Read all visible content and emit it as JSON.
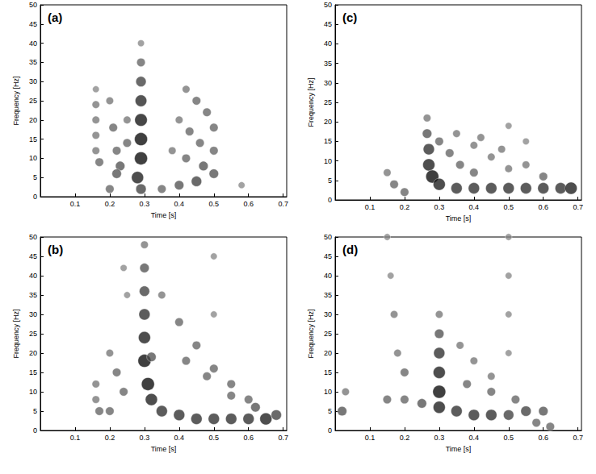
{
  "chart_data": [
    {
      "type": "scatter",
      "title": "(a)",
      "xlabel": "Time [s]",
      "ylabel": "Frequency [Hz]",
      "xlim": [
        0,
        0.71
      ],
      "xticks": [
        0.1,
        0.2,
        0.3,
        0.4,
        0.5,
        0.6,
        0.7
      ],
      "ylim": [
        0,
        50
      ],
      "yticks": [
        0,
        5,
        10,
        15,
        20,
        25,
        30,
        35,
        40,
        45,
        50
      ],
      "color": "#000000",
      "zlim": [
        0,
        1
      ],
      "cells": [
        [
          0.29,
          40,
          0.3
        ],
        [
          0.29,
          35,
          0.5
        ],
        [
          0.29,
          30,
          0.7
        ],
        [
          0.29,
          25,
          0.85
        ],
        [
          0.29,
          20,
          0.95
        ],
        [
          0.29,
          15,
          1
        ],
        [
          0.29,
          10,
          1
        ],
        [
          0.28,
          5,
          0.9
        ],
        [
          0.29,
          2,
          0.7
        ],
        [
          0.16,
          28,
          0.3
        ],
        [
          0.16,
          24,
          0.4
        ],
        [
          0.16,
          20,
          0.4
        ],
        [
          0.16,
          16,
          0.4
        ],
        [
          0.16,
          12,
          0.4
        ],
        [
          0.17,
          9,
          0.5
        ],
        [
          0.2,
          25,
          0.4
        ],
        [
          0.21,
          18,
          0.5
        ],
        [
          0.22,
          12,
          0.5
        ],
        [
          0.23,
          8,
          0.6
        ],
        [
          0.22,
          6,
          0.6
        ],
        [
          0.25,
          20,
          0.4
        ],
        [
          0.25,
          14,
          0.5
        ],
        [
          0.42,
          28,
          0.4
        ],
        [
          0.45,
          25,
          0.5
        ],
        [
          0.48,
          22,
          0.5
        ],
        [
          0.5,
          18,
          0.5
        ],
        [
          0.4,
          20,
          0.4
        ],
        [
          0.43,
          17,
          0.5
        ],
        [
          0.46,
          14,
          0.5
        ],
        [
          0.5,
          12,
          0.5
        ],
        [
          0.38,
          12,
          0.4
        ],
        [
          0.42,
          10,
          0.5
        ],
        [
          0.47,
          8,
          0.6
        ],
        [
          0.5,
          6,
          0.6
        ],
        [
          0.45,
          4,
          0.7
        ],
        [
          0.4,
          3,
          0.6
        ],
        [
          0.35,
          2,
          0.5
        ],
        [
          0.2,
          2,
          0.5
        ],
        [
          0.58,
          3,
          0.3
        ]
      ]
    },
    {
      "type": "scatter",
      "title": "(b)",
      "xlabel": "Time [s]",
      "ylabel": "Frequency [Hz]",
      "xlim": [
        0,
        0.71
      ],
      "xticks": [
        0.1,
        0.2,
        0.3,
        0.4,
        0.5,
        0.6,
        0.7
      ],
      "ylim": [
        0,
        50
      ],
      "yticks": [
        0,
        5,
        10,
        15,
        20,
        25,
        30,
        35,
        40,
        45,
        50
      ],
      "color": "#000000",
      "zlim": [
        0,
        1
      ],
      "cells": [
        [
          0.3,
          48,
          0.4
        ],
        [
          0.3,
          42,
          0.6
        ],
        [
          0.3,
          36,
          0.7
        ],
        [
          0.3,
          30,
          0.8
        ],
        [
          0.3,
          24,
          0.9
        ],
        [
          0.3,
          18,
          1
        ],
        [
          0.31,
          12,
          1
        ],
        [
          0.32,
          8,
          0.9
        ],
        [
          0.35,
          5,
          0.8
        ],
        [
          0.4,
          4,
          0.8
        ],
        [
          0.45,
          3,
          0.8
        ],
        [
          0.5,
          3,
          0.8
        ],
        [
          0.55,
          3,
          0.8
        ],
        [
          0.6,
          3,
          0.8
        ],
        [
          0.65,
          3,
          0.9
        ],
        [
          0.68,
          4,
          0.7
        ],
        [
          0.32,
          19,
          0.6
        ],
        [
          0.16,
          12,
          0.4
        ],
        [
          0.16,
          8,
          0.4
        ],
        [
          0.17,
          5,
          0.5
        ],
        [
          0.2,
          20,
          0.4
        ],
        [
          0.22,
          15,
          0.5
        ],
        [
          0.24,
          10,
          0.5
        ],
        [
          0.2,
          5,
          0.5
        ],
        [
          0.25,
          35,
          0.3
        ],
        [
          0.24,
          42,
          0.3
        ],
        [
          0.35,
          35,
          0.4
        ],
        [
          0.4,
          28,
          0.5
        ],
        [
          0.45,
          22,
          0.5
        ],
        [
          0.5,
          16,
          0.5
        ],
        [
          0.55,
          12,
          0.5
        ],
        [
          0.6,
          8,
          0.5
        ],
        [
          0.42,
          18,
          0.5
        ],
        [
          0.48,
          14,
          0.5
        ],
        [
          0.55,
          9,
          0.5
        ],
        [
          0.62,
          6,
          0.6
        ],
        [
          0.5,
          45,
          0.3
        ],
        [
          0.5,
          30,
          0.3
        ]
      ]
    },
    {
      "type": "scatter",
      "title": "(c)",
      "xlabel": "Time [s]",
      "ylabel": "Frequency [Hz]",
      "xlim": [
        0,
        0.71
      ],
      "xticks": [
        0.1,
        0.2,
        0.3,
        0.4,
        0.5,
        0.6,
        0.7
      ],
      "ylim": [
        0,
        50
      ],
      "yticks": [
        0,
        5,
        10,
        15,
        20,
        25,
        30,
        35,
        40,
        45,
        50
      ],
      "color": "#000000",
      "zlim": [
        0,
        1
      ],
      "cells": [
        [
          0.265,
          21,
          0.4
        ],
        [
          0.265,
          17,
          0.6
        ],
        [
          0.27,
          13,
          0.8
        ],
        [
          0.27,
          9,
          0.9
        ],
        [
          0.28,
          6,
          1
        ],
        [
          0.3,
          4,
          0.9
        ],
        [
          0.35,
          3,
          0.8
        ],
        [
          0.4,
          3,
          0.8
        ],
        [
          0.45,
          3,
          0.8
        ],
        [
          0.5,
          3,
          0.8
        ],
        [
          0.55,
          3,
          0.8
        ],
        [
          0.6,
          3,
          0.8
        ],
        [
          0.65,
          3,
          0.8
        ],
        [
          0.68,
          3,
          0.9
        ],
        [
          0.15,
          7,
          0.4
        ],
        [
          0.17,
          4,
          0.5
        ],
        [
          0.2,
          2,
          0.5
        ],
        [
          0.3,
          15,
          0.5
        ],
        [
          0.33,
          12,
          0.5
        ],
        [
          0.36,
          9,
          0.5
        ],
        [
          0.4,
          7,
          0.5
        ],
        [
          0.35,
          17,
          0.4
        ],
        [
          0.4,
          14,
          0.4
        ],
        [
          0.45,
          11,
          0.4
        ],
        [
          0.5,
          8,
          0.4
        ],
        [
          0.42,
          16,
          0.4
        ],
        [
          0.48,
          13,
          0.4
        ],
        [
          0.55,
          9,
          0.4
        ],
        [
          0.6,
          6,
          0.5
        ],
        [
          0.5,
          19,
          0.3
        ],
        [
          0.55,
          15,
          0.3
        ]
      ]
    },
    {
      "type": "scatter",
      "title": "(d)",
      "xlabel": "Time [s]",
      "ylabel": "Frequency [Hz]",
      "xlim": [
        0,
        0.71
      ],
      "xticks": [
        0.1,
        0.2,
        0.3,
        0.4,
        0.5,
        0.6,
        0.7
      ],
      "ylim": [
        0,
        50
      ],
      "yticks": [
        0,
        5,
        10,
        15,
        20,
        25,
        30,
        35,
        40,
        45,
        50
      ],
      "color": "#000000",
      "zlim": [
        0,
        1
      ],
      "cells": [
        [
          0.3,
          30,
          0.4
        ],
        [
          0.3,
          25,
          0.6
        ],
        [
          0.3,
          20,
          0.8
        ],
        [
          0.3,
          15,
          0.9
        ],
        [
          0.3,
          10,
          1
        ],
        [
          0.3,
          6,
          0.9
        ],
        [
          0.35,
          5,
          0.8
        ],
        [
          0.4,
          4,
          0.8
        ],
        [
          0.45,
          4,
          0.8
        ],
        [
          0.5,
          4,
          0.7
        ],
        [
          0.55,
          5,
          0.7
        ],
        [
          0.6,
          5,
          0.6
        ],
        [
          0.25,
          7,
          0.6
        ],
        [
          0.2,
          8,
          0.5
        ],
        [
          0.15,
          8,
          0.5
        ],
        [
          0.02,
          5,
          0.6
        ],
        [
          0.03,
          10,
          0.4
        ],
        [
          0.15,
          50,
          0.3
        ],
        [
          0.16,
          40,
          0.3
        ],
        [
          0.17,
          30,
          0.4
        ],
        [
          0.18,
          20,
          0.4
        ],
        [
          0.2,
          15,
          0.5
        ],
        [
          0.5,
          50,
          0.3
        ],
        [
          0.5,
          40,
          0.3
        ],
        [
          0.5,
          30,
          0.3
        ],
        [
          0.5,
          20,
          0.3
        ],
        [
          0.36,
          22,
          0.4
        ],
        [
          0.4,
          18,
          0.4
        ],
        [
          0.45,
          14,
          0.4
        ],
        [
          0.38,
          12,
          0.5
        ],
        [
          0.45,
          10,
          0.5
        ],
        [
          0.52,
          8,
          0.5
        ],
        [
          0.58,
          2,
          0.5
        ],
        [
          0.62,
          1,
          0.5
        ]
      ]
    }
  ]
}
